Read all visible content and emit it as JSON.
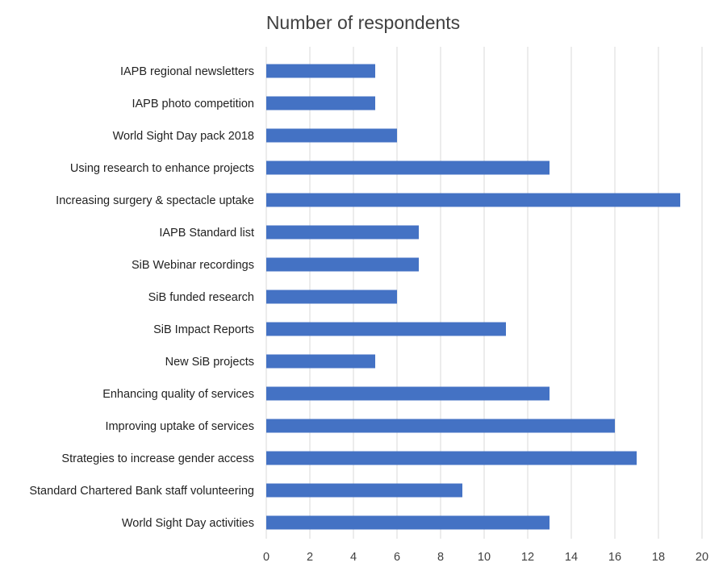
{
  "chart_data": {
    "type": "bar",
    "orientation": "horizontal",
    "title": "Number of respondents",
    "xlabel": "",
    "ylabel": "",
    "categories": [
      "IAPB regional newsletters",
      "IAPB photo competition",
      "World Sight Day pack 2018",
      "Using research to enhance projects",
      "Increasing surgery & spectacle uptake",
      "IAPB Standard list",
      "SiB Webinar recordings",
      "SiB funded research",
      "SiB Impact Reports",
      "New SiB projects",
      "Enhancing quality of services",
      "Improving uptake of services",
      "Strategies to increase gender access",
      "Standard Chartered Bank staff volunteering",
      "World Sight Day activities"
    ],
    "values": [
      5,
      5,
      6,
      13,
      19,
      7,
      7,
      6,
      11,
      5,
      13,
      16,
      17,
      9,
      13
    ],
    "xlim": [
      0,
      20
    ],
    "xticks": [
      "0",
      "2",
      "4",
      "6",
      "8",
      "10",
      "12",
      "14",
      "16",
      "18",
      "20"
    ],
    "grid": "vertical",
    "legend": "none",
    "bar_color": "#4472c4"
  }
}
